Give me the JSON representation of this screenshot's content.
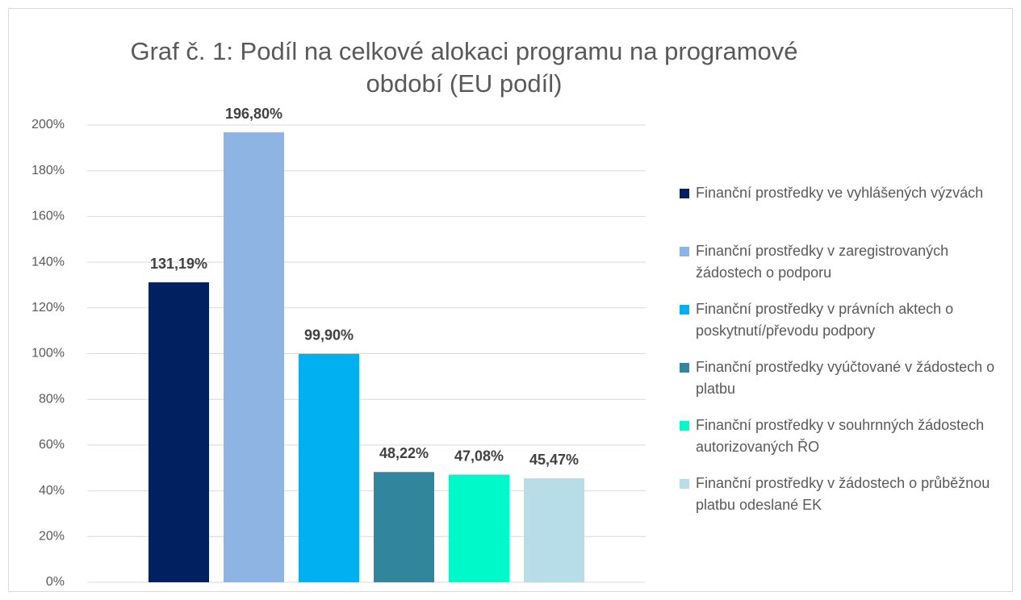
{
  "chart_data": {
    "type": "bar",
    "title": "Graf č. 1: Podíl na celkové alokaci programu na programové období (EU podíl)",
    "categories": [
      null
    ],
    "series": [
      {
        "name": "Finanční prostředky ve vyhlášených výzvách",
        "color": "#002060",
        "values": [
          131.19
        ],
        "value_labels": [
          "131,19%"
        ]
      },
      {
        "name": "Finanční prostředky v zaregistrovaných žádostech o podporu",
        "color": "#8eb4e3",
        "values": [
          196.8
        ],
        "value_labels": [
          "196,80%"
        ]
      },
      {
        "name": "Finanční prostředky v právních aktech o poskytnutí/převodu podpory",
        "color": "#00b0f0",
        "values": [
          99.9
        ],
        "value_labels": [
          "99,90%"
        ]
      },
      {
        "name": "Finanční prostředky vyúčtované v žádostech o platbu",
        "color": "#31859c",
        "values": [
          48.22
        ],
        "value_labels": [
          "48,22%"
        ]
      },
      {
        "name": "Finanční prostředky v souhrnných žádostech autorizovaných ŘO",
        "color": "#00f9c8",
        "values": [
          47.08
        ],
        "value_labels": [
          "47,08%"
        ]
      },
      {
        "name": "Finanční prostředky v žádostech o průběžnou platbu odeslané EK",
        "color": "#b7dde8",
        "values": [
          45.47
        ],
        "value_labels": [
          "45,47%"
        ]
      }
    ],
    "ylim": [
      0,
      200
    ],
    "yticks": [
      {
        "value": 0,
        "label": "0%"
      },
      {
        "value": 20,
        "label": "20%"
      },
      {
        "value": 40,
        "label": "40%"
      },
      {
        "value": 60,
        "label": "60%"
      },
      {
        "value": 80,
        "label": "80%"
      },
      {
        "value": 100,
        "label": "100%"
      },
      {
        "value": 120,
        "label": "120%"
      },
      {
        "value": 140,
        "label": "140%"
      },
      {
        "value": 160,
        "label": "160%"
      },
      {
        "value": 180,
        "label": "180%"
      },
      {
        "value": 200,
        "label": "200%"
      }
    ],
    "grid": true,
    "legend": "right"
  }
}
